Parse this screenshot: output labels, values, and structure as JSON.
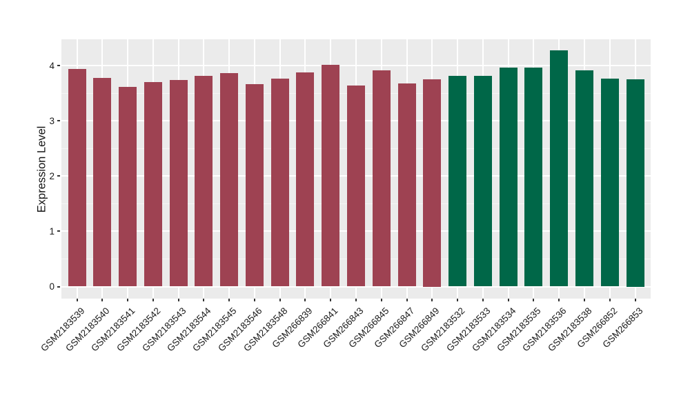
{
  "chart_data": {
    "type": "bar",
    "title": "",
    "xlabel": "",
    "ylabel": "Expression Level",
    "categories": [
      "GSM2183539",
      "GSM2183540",
      "GSM2183541",
      "GSM2183542",
      "GSM2183543",
      "GSM2183544",
      "GSM2183545",
      "GSM2183546",
      "GSM2183548",
      "GSM266839",
      "GSM266841",
      "GSM266843",
      "GSM266845",
      "GSM266847",
      "GSM266849",
      "GSM2183532",
      "GSM2183533",
      "GSM2183534",
      "GSM2183535",
      "GSM2183536",
      "GSM2183538",
      "GSM266852",
      "GSM266853"
    ],
    "values": [
      3.94,
      3.78,
      3.61,
      3.7,
      3.74,
      3.81,
      3.86,
      3.67,
      3.76,
      3.88,
      4.01,
      3.64,
      3.92,
      3.68,
      3.75,
      3.82,
      3.82,
      3.96,
      3.96,
      4.27,
      3.92,
      3.76,
      3.75
    ],
    "bar_colors": [
      "#9E4252",
      "#9E4252",
      "#9E4252",
      "#9E4252",
      "#9E4252",
      "#9E4252",
      "#9E4252",
      "#9E4252",
      "#9E4252",
      "#9E4252",
      "#9E4252",
      "#9E4252",
      "#9E4252",
      "#9E4252",
      "#9E4252",
      "#006748",
      "#006748",
      "#006748",
      "#006748",
      "#006748",
      "#006748",
      "#006748",
      "#006748"
    ],
    "groups": [
      {
        "color": "#9E4252",
        "bar_count": 15
      },
      {
        "color": "#006748",
        "bar_count": 8
      }
    ],
    "yticks": [
      0,
      1,
      2,
      3,
      4
    ],
    "ylim": [
      -0.22,
      4.47
    ],
    "minor_yticks": [
      0.5,
      1.5,
      2.5,
      3.5
    ],
    "x_tick_angle": 45,
    "grid": "on",
    "legend": "none",
    "panel_background": "#EBEBEB",
    "grid_color": "#FFFFFF",
    "axis_text_color": "#1a1a1a"
  }
}
